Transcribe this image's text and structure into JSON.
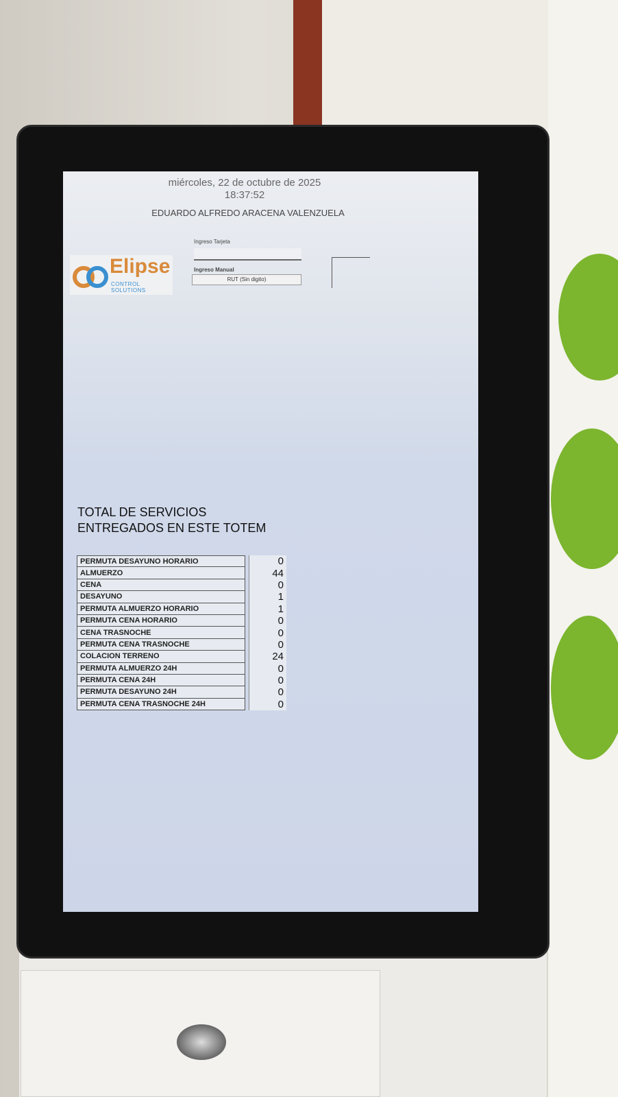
{
  "header": {
    "date": "miércoles, 22 de octubre de 2025",
    "time": "18:37:52",
    "user_name": "EDUARDO ALFREDO ARACENA VALENZUELA"
  },
  "logo": {
    "name": "Elipse",
    "subtitle": "CONTROL SOLUTIONS",
    "colors": {
      "orange": "#d98a3a",
      "blue": "#3a8fd0"
    }
  },
  "inputs": {
    "card_label": "Ingreso Tarjeta",
    "card_value": "",
    "manual_label": "Ingreso Manual",
    "manual_placeholder": "RUT (Sin digito)"
  },
  "summary": {
    "title_line1": "TOTAL DE SERVICIOS",
    "title_line2": "ENTREGADOS EN ESTE TOTEM",
    "rows": [
      {
        "label": "PERMUTA DESAYUNO HORARIO",
        "value": "0"
      },
      {
        "label": "ALMUERZO",
        "value": "44"
      },
      {
        "label": "CENA",
        "value": "0"
      },
      {
        "label": "DESAYUNO",
        "value": "1"
      },
      {
        "label": "PERMUTA ALMUERZO HORARIO",
        "value": "1"
      },
      {
        "label": "PERMUTA CENA HORARIO",
        "value": "0"
      },
      {
        "label": "CENA TRASNOCHE",
        "value": "0"
      },
      {
        "label": "PERMUTA CENA TRASNOCHE",
        "value": "0"
      },
      {
        "label": "COLACION TERRENO",
        "value": "24"
      },
      {
        "label": "PERMUTA ALMUERZO 24H",
        "value": "0"
      },
      {
        "label": "PERMUTA CENA 24H",
        "value": "0"
      },
      {
        "label": "PERMUTA DESAYUNO 24H",
        "value": "0"
      },
      {
        "label": "PERMUTA CENA TRASNOCHE 24H",
        "value": "0"
      }
    ]
  }
}
